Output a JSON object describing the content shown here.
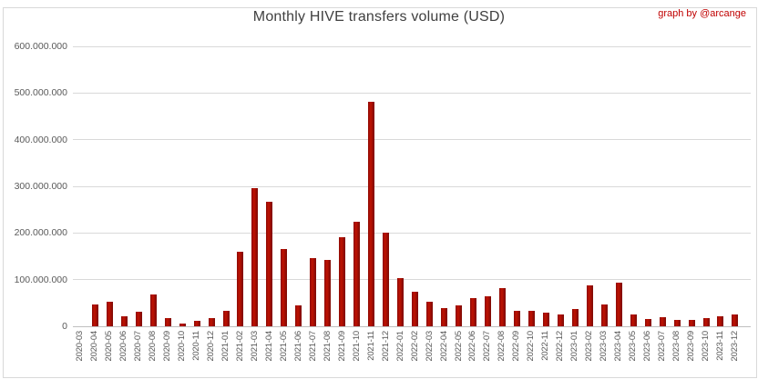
{
  "header": {
    "attribution": "graph by @arcange"
  },
  "colors": {
    "bar": "#b01002",
    "bar_gradient": [
      "#8e0b05",
      "#c01202",
      "#7c0a05"
    ],
    "grid": "#d9d9d9",
    "zero_axis": "#bfbfbf",
    "axis_text": "#595959",
    "title_text": "#404040",
    "attribution_text": "#c00000",
    "background": "#ffffff"
  },
  "chart_data": {
    "type": "bar",
    "title": "Monthly HIVE transfers volume (USD)",
    "xlabel": "",
    "ylabel": "",
    "legend_position": "none",
    "grid": true,
    "ylim": [
      0,
      600000000
    ],
    "ytick_step": 100000000,
    "ytick_labels": [
      "600.000.000",
      "500.000.000",
      "400.000.000",
      "300.000.000",
      "200.000.000",
      "100.000.000",
      "0"
    ],
    "categories": [
      "2020-03",
      "2020-04",
      "2020-05",
      "2020-06",
      "2020-07",
      "2020-08",
      "2020-09",
      "2020-10",
      "2020-11",
      "2020-12",
      "2021-01",
      "2021-02",
      "2021-03",
      "2021-04",
      "2021-05",
      "2021-06",
      "2021-07",
      "2021-08",
      "2021-09",
      "2021-10",
      "2021-11",
      "2021-12",
      "2022-01",
      "2022-02",
      "2022-03",
      "2022-04",
      "2022-05",
      "2022-06",
      "2022-07",
      "2022-08",
      "2022-09",
      "2022-10",
      "2022-11",
      "2022-12",
      "2023-01",
      "2023-02",
      "2023-03",
      "2023-04",
      "2023-05",
      "2023-06",
      "2023-07",
      "2023-08",
      "2023-09",
      "2023-10",
      "2023-11",
      "2023-12"
    ],
    "values": [
      0,
      47000000,
      52000000,
      22000000,
      31000000,
      68000000,
      17000000,
      6000000,
      11000000,
      18000000,
      33000000,
      159000000,
      297000000,
      266000000,
      165000000,
      44000000,
      147000000,
      143000000,
      190000000,
      225000000,
      481000000,
      201000000,
      104000000,
      74000000,
      52000000,
      39000000,
      44000000,
      60000000,
      65000000,
      82000000,
      34000000,
      33000000,
      30000000,
      26000000,
      38000000,
      87000000,
      46000000,
      94000000,
      25000000,
      15000000,
      19000000,
      13000000,
      13000000,
      18000000,
      21000000,
      25000000
    ]
  }
}
